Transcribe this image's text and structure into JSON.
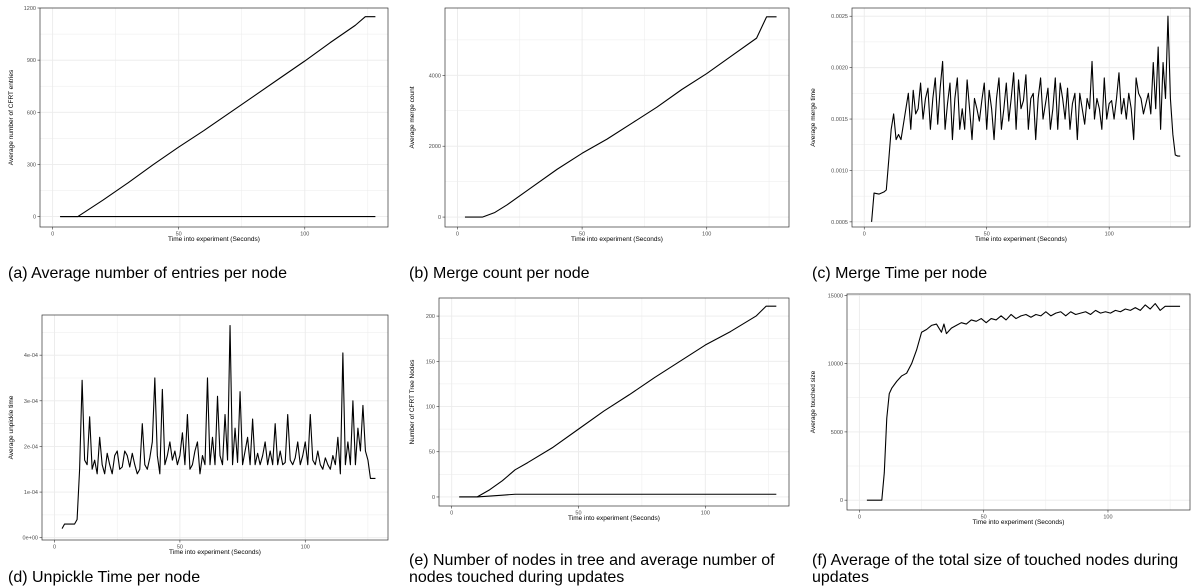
{
  "captions": [
    "(a) Average number of entries per node",
    "(b) Merge count per node",
    "(c) Merge Time per node",
    "(d) Unpickle Time per node",
    "(e) Number of nodes in tree and average number of nodes touched during updates",
    "(f) Average of the total size of touched nodes during updates"
  ],
  "colors": {
    "line": "#000000",
    "grid": "#ebebeb",
    "panel_border": "#333333",
    "tick_text": "#4d4d4d"
  },
  "chart_data": [
    {
      "type": "line",
      "xlabel": "Time into experiment (Seconds)",
      "ylabel": "Average number of CFRT entries",
      "xlim": [
        -5,
        133
      ],
      "ylim": [
        -60,
        1200
      ],
      "xticks": [
        0,
        50,
        100
      ],
      "yticks": [
        0,
        300,
        600,
        900,
        1200
      ],
      "grid": true,
      "series": [
        {
          "x": [
            3,
            10,
            20,
            30,
            40,
            50,
            60,
            70,
            80,
            90,
            100,
            110,
            120,
            124,
            128
          ],
          "values": [
            0,
            0,
            95,
            195,
            300,
            400,
            495,
            595,
            695,
            795,
            895,
            1000,
            1100,
            1150,
            1150
          ]
        },
        {
          "x": [
            3,
            128
          ],
          "values": [
            0,
            0
          ]
        }
      ]
    },
    {
      "type": "line",
      "xlabel": "Time into experiment (Seconds)",
      "ylabel": "Average merge count",
      "xlim": [
        -5,
        133
      ],
      "ylim": [
        -280,
        5900
      ],
      "xticks": [
        0,
        50,
        100
      ],
      "yticks": [
        0,
        2000,
        4000
      ],
      "grid": true,
      "series": [
        {
          "x": [
            3,
            10,
            15,
            20,
            30,
            40,
            50,
            60,
            70,
            80,
            90,
            100,
            110,
            120,
            124,
            128
          ],
          "values": [
            0,
            0,
            130,
            350,
            850,
            1350,
            1800,
            2200,
            2650,
            3100,
            3600,
            4050,
            4550,
            5050,
            5650,
            5650
          ]
        }
      ]
    },
    {
      "type": "line",
      "xlabel": "Time into experiment (Seconds)",
      "ylabel": "Average merge time",
      "xlim": [
        -5,
        133
      ],
      "ylim": [
        0.00045,
        0.00258
      ],
      "xticks": [
        0,
        50,
        100
      ],
      "yticks": [
        0.0005,
        0.001,
        0.0015,
        0.002,
        0.0025
      ],
      "ytick_labels": [
        "0.0005",
        "0.0010",
        "0.0015",
        "0.0020",
        "0.0025"
      ],
      "grid": true,
      "series": [
        {
          "x": [
            3,
            4,
            6,
            8,
            9,
            10,
            11,
            12,
            13,
            14,
            15,
            16,
            17,
            18,
            19,
            20,
            21,
            22,
            23,
            24,
            25,
            26,
            27,
            28,
            29,
            30,
            31,
            32,
            33,
            34,
            35,
            36,
            37,
            38,
            39,
            40,
            41,
            42,
            43,
            44,
            45,
            46,
            47,
            48,
            49,
            50,
            51,
            52,
            53,
            54,
            55,
            56,
            57,
            58,
            59,
            60,
            61,
            62,
            63,
            64,
            65,
            66,
            67,
            68,
            69,
            70,
            71,
            72,
            73,
            74,
            75,
            76,
            77,
            78,
            79,
            80,
            81,
            82,
            83,
            84,
            85,
            86,
            87,
            88,
            89,
            90,
            91,
            92,
            93,
            94,
            95,
            96,
            97,
            98,
            99,
            100,
            101,
            102,
            103,
            104,
            105,
            106,
            107,
            108,
            109,
            110,
            111,
            112,
            113,
            114,
            115,
            116,
            117,
            118,
            119,
            120,
            121,
            122,
            123,
            124,
            125,
            126,
            127,
            128,
            129
          ],
          "values": [
            0.0005,
            0.00078,
            0.00077,
            0.00079,
            0.00081,
            0.0011,
            0.0014,
            0.00155,
            0.0013,
            0.00135,
            0.0013,
            0.00145,
            0.0016,
            0.00175,
            0.0014,
            0.00178,
            0.00155,
            0.0016,
            0.00185,
            0.0015,
            0.0017,
            0.0018,
            0.0014,
            0.0017,
            0.0019,
            0.00145,
            0.0018,
            0.00206,
            0.0014,
            0.00165,
            0.00185,
            0.0013,
            0.0017,
            0.0019,
            0.0014,
            0.0016,
            0.0014,
            0.00188,
            0.0016,
            0.0013,
            0.0017,
            0.0016,
            0.00148,
            0.00168,
            0.00185,
            0.0014,
            0.00178,
            0.0016,
            0.0013,
            0.0017,
            0.0019,
            0.0014,
            0.0016,
            0.00185,
            0.00148,
            0.0017,
            0.00195,
            0.0014,
            0.00188,
            0.0016,
            0.00168,
            0.00193,
            0.0014,
            0.0017,
            0.00175,
            0.0013,
            0.0017,
            0.0019,
            0.0015,
            0.00165,
            0.0018,
            0.0014,
            0.0016,
            0.0019,
            0.0014,
            0.00185,
            0.0017,
            0.0015,
            0.0018,
            0.0014,
            0.00165,
            0.00175,
            0.0013,
            0.00175,
            0.0016,
            0.00145,
            0.0017,
            0.0016,
            0.00206,
            0.0015,
            0.0017,
            0.0016,
            0.0014,
            0.0019,
            0.0015,
            0.00165,
            0.00168,
            0.0015,
            0.0017,
            0.00195,
            0.00155,
            0.0017,
            0.0015,
            0.00175,
            0.0016,
            0.0013,
            0.0019,
            0.00175,
            0.0017,
            0.00155,
            0.00165,
            0.00175,
            0.00155,
            0.00205,
            0.0016,
            0.0022,
            0.0014,
            0.00205,
            0.0017,
            0.0025,
            0.0017,
            0.00135,
            0.00115,
            0.00114,
            0.00114
          ]
        }
      ]
    },
    {
      "type": "line",
      "xlabel": "Time into experiment (Seconds)",
      "ylabel": "Average unpickle time",
      "xlim": [
        -5,
        133
      ],
      "ylim": [
        -5e-06,
        0.000488
      ],
      "xticks": [
        0,
        50,
        100
      ],
      "yticks": [
        0,
        0.0001,
        0.0002,
        0.0003,
        0.0004
      ],
      "ytick_labels": [
        "0e+00",
        "1e-04",
        "2e-04",
        "3e-04",
        "4e-04"
      ],
      "grid": true,
      "series": [
        {
          "x": [
            3,
            4,
            6,
            8,
            9,
            10,
            11,
            12,
            13,
            14,
            15,
            16,
            17,
            18,
            19,
            20,
            21,
            22,
            23,
            24,
            25,
            26,
            27,
            28,
            29,
            30,
            31,
            32,
            33,
            34,
            35,
            36,
            37,
            38,
            39,
            40,
            41,
            42,
            43,
            44,
            45,
            46,
            47,
            48,
            49,
            50,
            51,
            52,
            53,
            54,
            55,
            56,
            57,
            58,
            59,
            60,
            61,
            62,
            63,
            64,
            65,
            66,
            67,
            68,
            69,
            70,
            71,
            72,
            73,
            74,
            75,
            76,
            77,
            78,
            79,
            80,
            81,
            82,
            83,
            84,
            85,
            86,
            87,
            88,
            89,
            90,
            91,
            92,
            93,
            94,
            95,
            96,
            97,
            98,
            99,
            100,
            101,
            102,
            103,
            104,
            105,
            106,
            107,
            108,
            109,
            110,
            111,
            112,
            113,
            114,
            115,
            116,
            117,
            118,
            119,
            120,
            121,
            122,
            123,
            124,
            125,
            126,
            127,
            128
          ],
          "values": [
            2e-05,
            3e-05,
            3e-05,
            3e-05,
            4e-05,
            0.00015,
            0.000345,
            0.00017,
            0.00016,
            0.000265,
            0.00015,
            0.00017,
            0.00014,
            0.00022,
            0.00016,
            0.00014,
            0.000185,
            0.00016,
            0.00014,
            0.00018,
            0.00019,
            0.00015,
            0.000155,
            0.00019,
            0.00018,
            0.000155,
            0.000185,
            0.00016,
            0.00014,
            0.00015,
            0.00025,
            0.00016,
            0.00015,
            0.000175,
            0.00021,
            0.00035,
            0.00018,
            0.00014,
            0.000325,
            0.00016,
            0.00018,
            0.00021,
            0.00017,
            0.00019,
            0.00016,
            0.00018,
            0.00023,
            0.00016,
            0.00027,
            0.00015,
            0.00016,
            0.00019,
            0.00021,
            0.00014,
            0.00018,
            0.00016,
            0.00035,
            0.00016,
            0.00022,
            0.00016,
            0.00031,
            0.00018,
            0.00016,
            0.00027,
            0.00017,
            0.000465,
            0.00016,
            0.00024,
            0.000165,
            0.00032,
            0.00016,
            0.00019,
            0.00022,
            0.00016,
            0.00026,
            0.00016,
            0.000185,
            0.00016,
            0.00018,
            0.00021,
            0.00016,
            0.00019,
            0.00016,
            0.00025,
            0.00016,
            0.00019,
            0.00016,
            0.000165,
            0.00027,
            0.00017,
            0.00016,
            0.000175,
            0.00021,
            0.00016,
            0.00018,
            0.00021,
            0.00016,
            0.00027,
            0.00017,
            0.00016,
            0.00019,
            0.00016,
            0.00015,
            0.000175,
            0.00016,
            0.00015,
            0.00018,
            0.00016,
            0.00022,
            0.00014,
            0.000405,
            0.00016,
            0.00021,
            0.00016,
            0.0003,
            0.00016,
            0.00024,
            0.00019,
            0.00029,
            0.00019,
            0.00017,
            0.00013,
            0.00013,
            0.00013
          ]
        }
      ]
    },
    {
      "type": "line",
      "xlabel": "Time into experiment (Seconds)",
      "ylabel": "Number of CFRT Tree Nodes",
      "xlim": [
        -5,
        133
      ],
      "ylim": [
        -10,
        220
      ],
      "xticks": [
        0,
        50,
        100
      ],
      "yticks": [
        0,
        50,
        100,
        150,
        200
      ],
      "grid": true,
      "series": [
        {
          "x": [
            3,
            10,
            15,
            20,
            25,
            30,
            40,
            50,
            60,
            70,
            80,
            90,
            100,
            110,
            120,
            124,
            128
          ],
          "values": [
            0,
            0,
            8,
            18,
            30,
            38,
            55,
            75,
            95,
            113,
            132,
            150,
            168,
            183,
            200,
            211,
            211
          ]
        },
        {
          "x": [
            3,
            10,
            15,
            20,
            25,
            30,
            60,
            128
          ],
          "values": [
            0,
            0,
            1,
            2,
            3,
            3,
            3,
            3
          ]
        }
      ]
    },
    {
      "type": "line",
      "xlabel": "Time into experiment (Seconds)",
      "ylabel": "Average touched size",
      "xlim": [
        -5,
        133
      ],
      "ylim": [
        -720,
        15100
      ],
      "xticks": [
        0,
        50,
        100
      ],
      "yticks": [
        0,
        5000,
        10000,
        15000
      ],
      "grid": true,
      "series": [
        {
          "x": [
            3,
            9,
            10,
            11,
            12,
            13,
            15,
            17,
            19,
            21,
            23,
            25,
            27,
            29,
            31,
            33,
            34,
            35,
            37,
            39,
            41,
            43,
            45,
            47,
            49,
            51,
            53,
            55,
            57,
            59,
            61,
            63,
            65,
            67,
            69,
            71,
            73,
            75,
            77,
            79,
            81,
            83,
            85,
            87,
            89,
            91,
            93,
            95,
            97,
            99,
            101,
            103,
            105,
            107,
            109,
            111,
            113,
            115,
            117,
            119,
            121,
            123,
            125,
            127,
            129
          ],
          "values": [
            0,
            0,
            2000,
            6000,
            7800,
            8200,
            8700,
            9100,
            9300,
            10000,
            11000,
            12300,
            12500,
            12800,
            12900,
            12300,
            12900,
            12200,
            12600,
            12800,
            13000,
            12900,
            13200,
            13100,
            13300,
            13000,
            13300,
            13200,
            13500,
            13200,
            13600,
            13300,
            13500,
            13600,
            13400,
            13600,
            13500,
            13800,
            13500,
            13700,
            13800,
            13500,
            13800,
            13600,
            13700,
            13800,
            13600,
            13900,
            13700,
            13800,
            13700,
            13900,
            13800,
            14000,
            13900,
            14100,
            13900,
            14300,
            14000,
            14400,
            13900,
            14200,
            14200,
            14200,
            14200
          ]
        }
      ]
    }
  ]
}
